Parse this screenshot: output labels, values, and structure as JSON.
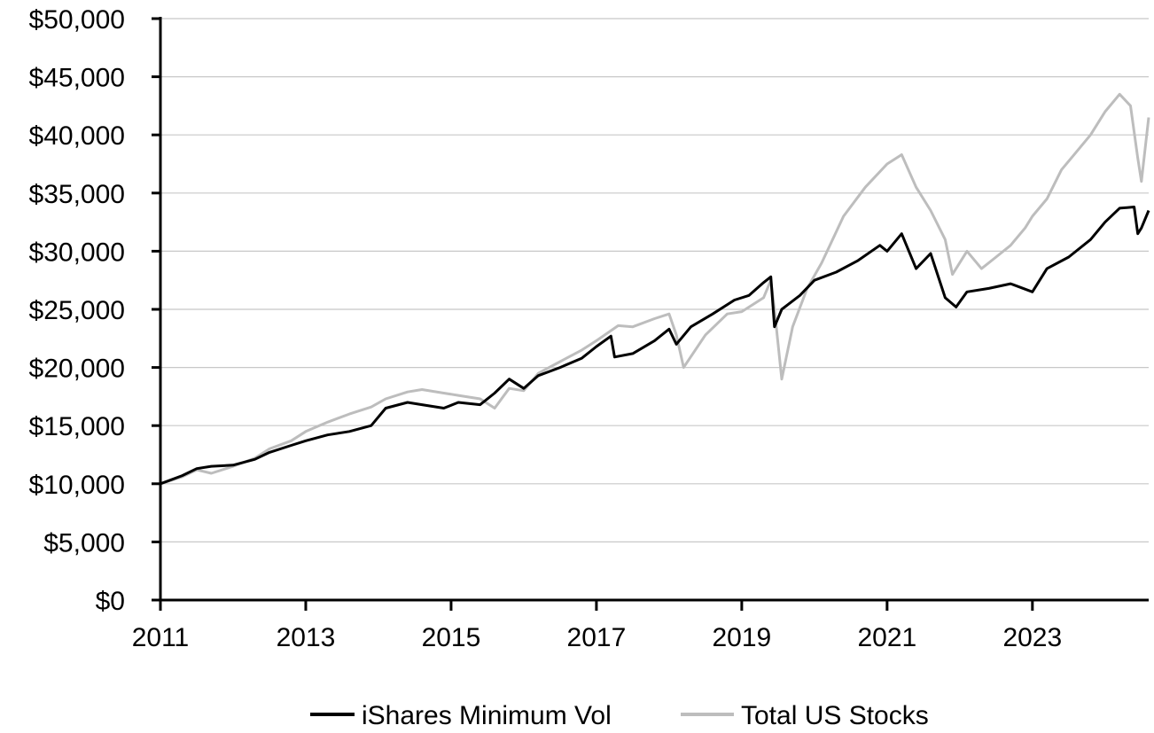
{
  "chart_data": {
    "type": "line",
    "title": "",
    "xlabel": "",
    "ylabel": "",
    "xlim": [
      2011.0,
      2024.6
    ],
    "ylim": [
      0,
      50000
    ],
    "grid": "horizontal",
    "legend_position": "bottom",
    "x_ticks": [
      2011,
      2013,
      2015,
      2017,
      2019,
      2021,
      2023
    ],
    "x_tick_labels": [
      "2011",
      "2013",
      "2015",
      "2017",
      "2019",
      "2021",
      "2023"
    ],
    "y_ticks": [
      0,
      5000,
      10000,
      15000,
      20000,
      25000,
      30000,
      35000,
      40000,
      45000,
      50000
    ],
    "y_tick_labels": [
      "$0",
      "$5,000",
      "$10,000",
      "$15,000",
      "$20,000",
      "$25,000",
      "$30,000",
      "$35,000",
      "$40,000",
      "$45,000",
      "$50,000"
    ],
    "series": [
      {
        "name": "Total US Stocks",
        "color": "#bdbdbd",
        "x": [
          2011.0,
          2011.3,
          2011.5,
          2011.7,
          2012.0,
          2012.3,
          2012.5,
          2012.8,
          2013.0,
          2013.3,
          2013.6,
          2013.9,
          2014.1,
          2014.4,
          2014.6,
          2014.9,
          2015.1,
          2015.4,
          2015.6,
          2015.8,
          2016.0,
          2016.2,
          2016.5,
          2016.8,
          2017.0,
          2017.3,
          2017.5,
          2017.8,
          2018.0,
          2018.1,
          2018.2,
          2018.5,
          2018.8,
          2019.0,
          2019.3,
          2019.4,
          2019.45,
          2019.55,
          2019.7,
          2019.9,
          2020.1,
          2020.4,
          2020.7,
          2021.0,
          2021.2,
          2021.4,
          2021.6,
          2021.8,
          2021.9,
          2022.1,
          2022.3,
          2022.5,
          2022.7,
          2022.9,
          2023.0,
          2023.2,
          2023.4,
          2023.6,
          2023.8,
          2024.0,
          2024.2,
          2024.35,
          2024.45,
          2024.5,
          2024.6
        ],
        "y": [
          10000,
          10600,
          11200,
          10900,
          11500,
          12200,
          13000,
          13700,
          14500,
          15300,
          16000,
          16600,
          17300,
          17900,
          18100,
          17800,
          17600,
          17300,
          16500,
          18200,
          18000,
          19500,
          20500,
          21500,
          22300,
          23600,
          23500,
          24200,
          24600,
          22800,
          20000,
          22800,
          24600,
          24800,
          26000,
          27500,
          25000,
          19000,
          23500,
          26800,
          29000,
          33000,
          35500,
          37500,
          38300,
          35500,
          33500,
          31000,
          28000,
          30000,
          28500,
          29500,
          30500,
          32000,
          33000,
          34500,
          37000,
          38500,
          40000,
          42000,
          43500,
          42500,
          38000,
          36000,
          41500
        ]
      },
      {
        "name": "iShares Minimum Vol",
        "color": "#000000",
        "x": [
          2011.0,
          2011.3,
          2011.5,
          2011.7,
          2012.0,
          2012.3,
          2012.5,
          2012.8,
          2013.0,
          2013.3,
          2013.6,
          2013.9,
          2014.1,
          2014.4,
          2014.6,
          2014.9,
          2015.1,
          2015.4,
          2015.6,
          2015.8,
          2016.0,
          2016.2,
          2016.5,
          2016.8,
          2017.0,
          2017.2,
          2017.25,
          2017.5,
          2017.8,
          2018.0,
          2018.1,
          2018.3,
          2018.6,
          2018.9,
          2019.1,
          2019.3,
          2019.4,
          2019.45,
          2019.55,
          2019.8,
          2020.0,
          2020.3,
          2020.6,
          2020.9,
          2021.0,
          2021.2,
          2021.4,
          2021.6,
          2021.8,
          2021.95,
          2022.1,
          2022.4,
          2022.7,
          2023.0,
          2023.2,
          2023.5,
          2023.8,
          2024.0,
          2024.2,
          2024.4,
          2024.45,
          2024.5,
          2024.6
        ],
        "y": [
          10000,
          10700,
          11300,
          11500,
          11600,
          12100,
          12700,
          13300,
          13700,
          14200,
          14500,
          15000,
          16500,
          17000,
          16800,
          16500,
          17000,
          16800,
          17800,
          19000,
          18200,
          19300,
          20000,
          20800,
          21800,
          22700,
          20900,
          21200,
          22300,
          23300,
          22000,
          23500,
          24600,
          25800,
          26200,
          27300,
          27800,
          23500,
          25000,
          26200,
          27500,
          28200,
          29200,
          30500,
          30000,
          31500,
          28500,
          29800,
          26000,
          25200,
          26500,
          26800,
          27200,
          26500,
          28500,
          29500,
          31000,
          32500,
          33700,
          33800,
          31500,
          32000,
          33500
        ]
      }
    ]
  }
}
